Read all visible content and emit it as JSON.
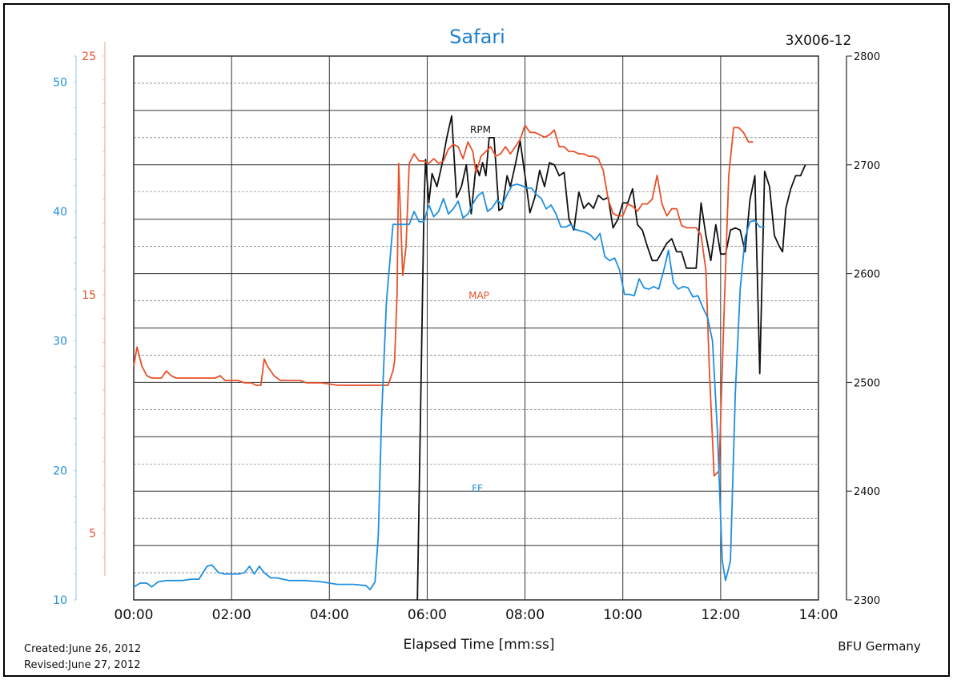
{
  "chart_data": {
    "type": "line",
    "title": "Safari",
    "subtitle": "3X006-12",
    "xlabel": "Elapsed Time [mm:ss]",
    "x_ticks": [
      "00:00",
      "02:00",
      "04:00",
      "06:00",
      "08:00",
      "10:00",
      "12:00",
      "14:00"
    ],
    "x_range_seconds": [
      0,
      840
    ],
    "grid": true,
    "footer": {
      "created": "Created:June 26, 2012",
      "revised": "Revised:June 27, 2012",
      "org": "BFU Germany"
    },
    "axes": {
      "rpm": {
        "side": "right",
        "range": [
          2300,
          2800
        ],
        "ticks": [
          "2300",
          "2400",
          "2500",
          "2600",
          "2700",
          "2800"
        ],
        "color": "#000000"
      },
      "map": {
        "side": "left",
        "range": [
          2.2,
          25
        ],
        "ticks": [
          "5",
          "15",
          "25"
        ],
        "tick_values": [
          5,
          15,
          25
        ],
        "color": "#e8502a"
      },
      "ff": {
        "side": "left",
        "range": [
          10,
          52
        ],
        "ticks": [
          "10",
          "20",
          "30",
          "40",
          "50"
        ],
        "tick_values": [
          10,
          20,
          30,
          40,
          50
        ],
        "color": "#1e8fe0"
      }
    },
    "series": [
      {
        "name": "RPM",
        "axis": "rpm",
        "color": "#111111",
        "points": [
          [
            348,
            2300
          ],
          [
            356,
            2660
          ],
          [
            358,
            2705
          ],
          [
            362,
            2665
          ],
          [
            366,
            2692
          ],
          [
            372,
            2680
          ],
          [
            378,
            2700
          ],
          [
            384,
            2725
          ],
          [
            390,
            2745
          ],
          [
            396,
            2670
          ],
          [
            402,
            2680
          ],
          [
            408,
            2700
          ],
          [
            414,
            2655
          ],
          [
            420,
            2700
          ],
          [
            424,
            2690
          ],
          [
            428,
            2702
          ],
          [
            432,
            2690
          ],
          [
            436,
            2725
          ],
          [
            442,
            2725
          ],
          [
            448,
            2658
          ],
          [
            452,
            2660
          ],
          [
            458,
            2690
          ],
          [
            462,
            2680
          ],
          [
            468,
            2700
          ],
          [
            474,
            2722
          ],
          [
            480,
            2690
          ],
          [
            486,
            2656
          ],
          [
            492,
            2670
          ],
          [
            498,
            2695
          ],
          [
            504,
            2680
          ],
          [
            510,
            2702
          ],
          [
            516,
            2700
          ],
          [
            522,
            2690
          ],
          [
            528,
            2693
          ],
          [
            534,
            2650
          ],
          [
            540,
            2640
          ],
          [
            546,
            2675
          ],
          [
            552,
            2660
          ],
          [
            558,
            2665
          ],
          [
            564,
            2660
          ],
          [
            570,
            2672
          ],
          [
            576,
            2668
          ],
          [
            582,
            2670
          ],
          [
            588,
            2642
          ],
          [
            594,
            2650
          ],
          [
            600,
            2665
          ],
          [
            606,
            2665
          ],
          [
            612,
            2678
          ],
          [
            618,
            2645
          ],
          [
            624,
            2640
          ],
          [
            630,
            2625
          ],
          [
            636,
            2612
          ],
          [
            642,
            2612
          ],
          [
            648,
            2620
          ],
          [
            654,
            2628
          ],
          [
            660,
            2632
          ],
          [
            666,
            2620
          ],
          [
            672,
            2620
          ],
          [
            678,
            2605
          ],
          [
            684,
            2605
          ],
          [
            690,
            2605
          ],
          [
            696,
            2665
          ],
          [
            702,
            2635
          ],
          [
            708,
            2612
          ],
          [
            714,
            2645
          ],
          [
            720,
            2618
          ],
          [
            726,
            2618
          ],
          [
            732,
            2640
          ],
          [
            738,
            2642
          ],
          [
            744,
            2640
          ],
          [
            750,
            2620
          ],
          [
            756,
            2668
          ],
          [
            762,
            2690
          ],
          [
            768,
            2508
          ],
          [
            774,
            2694
          ],
          [
            780,
            2680
          ],
          [
            786,
            2635
          ],
          [
            792,
            2625
          ],
          [
            796,
            2620
          ],
          [
            800,
            2660
          ],
          [
            806,
            2678
          ],
          [
            812,
            2690
          ],
          [
            818,
            2690
          ],
          [
            824,
            2700
          ]
        ]
      },
      {
        "name": "MAP",
        "axis": "map",
        "color": "#e8502a",
        "points": [
          [
            0,
            12.0
          ],
          [
            4,
            12.8
          ],
          [
            10,
            12.0
          ],
          [
            16,
            11.6
          ],
          [
            22,
            11.5
          ],
          [
            28,
            11.5
          ],
          [
            34,
            11.5
          ],
          [
            40,
            11.8
          ],
          [
            46,
            11.6
          ],
          [
            52,
            11.5
          ],
          [
            60,
            11.5
          ],
          [
            70,
            11.5
          ],
          [
            80,
            11.5
          ],
          [
            90,
            11.5
          ],
          [
            100,
            11.5
          ],
          [
            106,
            11.6
          ],
          [
            112,
            11.4
          ],
          [
            120,
            11.4
          ],
          [
            128,
            11.4
          ],
          [
            136,
            11.3
          ],
          [
            144,
            11.3
          ],
          [
            150,
            11.2
          ],
          [
            156,
            11.2
          ],
          [
            160,
            12.3
          ],
          [
            164,
            12.0
          ],
          [
            172,
            11.6
          ],
          [
            180,
            11.4
          ],
          [
            188,
            11.4
          ],
          [
            196,
            11.4
          ],
          [
            204,
            11.4
          ],
          [
            212,
            11.3
          ],
          [
            230,
            11.3
          ],
          [
            250,
            11.2
          ],
          [
            280,
            11.2
          ],
          [
            300,
            11.2
          ],
          [
            312,
            11.2
          ],
          [
            318,
            11.8
          ],
          [
            320,
            12.2
          ],
          [
            323,
            15.0
          ],
          [
            325,
            20.5
          ],
          [
            330,
            15.8
          ],
          [
            334,
            17.0
          ],
          [
            338,
            20.5
          ],
          [
            344,
            20.9
          ],
          [
            350,
            20.6
          ],
          [
            356,
            20.6
          ],
          [
            362,
            20.5
          ],
          [
            368,
            20.7
          ],
          [
            374,
            20.5
          ],
          [
            380,
            20.6
          ],
          [
            386,
            21.1
          ],
          [
            392,
            21.3
          ],
          [
            398,
            21.2
          ],
          [
            404,
            20.7
          ],
          [
            410,
            21.4
          ],
          [
            416,
            21.0
          ],
          [
            420,
            20.1
          ],
          [
            426,
            20.8
          ],
          [
            432,
            21.0
          ],
          [
            438,
            21.2
          ],
          [
            444,
            20.8
          ],
          [
            450,
            20.9
          ],
          [
            456,
            21.2
          ],
          [
            462,
            20.9
          ],
          [
            468,
            21.2
          ],
          [
            474,
            21.5
          ],
          [
            480,
            22.1
          ],
          [
            486,
            21.8
          ],
          [
            492,
            21.8
          ],
          [
            498,
            21.7
          ],
          [
            504,
            21.6
          ],
          [
            510,
            21.7
          ],
          [
            516,
            21.9
          ],
          [
            522,
            21.2
          ],
          [
            528,
            21.2
          ],
          [
            534,
            21.0
          ],
          [
            540,
            21.0
          ],
          [
            546,
            20.9
          ],
          [
            552,
            20.9
          ],
          [
            558,
            20.8
          ],
          [
            564,
            20.8
          ],
          [
            570,
            20.7
          ],
          [
            576,
            20.2
          ],
          [
            582,
            19.0
          ],
          [
            588,
            18.4
          ],
          [
            594,
            18.3
          ],
          [
            600,
            18.3
          ],
          [
            606,
            18.8
          ],
          [
            612,
            18.7
          ],
          [
            618,
            18.5
          ],
          [
            624,
            18.8
          ],
          [
            630,
            18.8
          ],
          [
            636,
            19.0
          ],
          [
            642,
            20.0
          ],
          [
            648,
            18.8
          ],
          [
            654,
            18.3
          ],
          [
            660,
            18.6
          ],
          [
            666,
            18.6
          ],
          [
            672,
            17.9
          ],
          [
            678,
            17.8
          ],
          [
            684,
            17.8
          ],
          [
            690,
            17.8
          ],
          [
            696,
            17.5
          ],
          [
            702,
            16.0
          ],
          [
            706,
            12.0
          ],
          [
            712,
            7.4
          ],
          [
            718,
            7.6
          ],
          [
            724,
            14.0
          ],
          [
            730,
            20.0
          ],
          [
            736,
            22.0
          ],
          [
            742,
            22.0
          ],
          [
            748,
            21.8
          ],
          [
            754,
            21.4
          ],
          [
            760,
            21.4
          ]
        ]
      },
      {
        "name": "FF",
        "axis": "ff",
        "color": "#1e8fe0",
        "points": [
          [
            0,
            11.0
          ],
          [
            8,
            11.3
          ],
          [
            16,
            11.3
          ],
          [
            22,
            11.0
          ],
          [
            30,
            11.4
          ],
          [
            40,
            11.5
          ],
          [
            50,
            11.5
          ],
          [
            60,
            11.5
          ],
          [
            70,
            11.6
          ],
          [
            80,
            11.6
          ],
          [
            90,
            12.6
          ],
          [
            96,
            12.7
          ],
          [
            104,
            12.1
          ],
          [
            112,
            12.0
          ],
          [
            120,
            12.0
          ],
          [
            128,
            12.0
          ],
          [
            136,
            12.1
          ],
          [
            142,
            12.6
          ],
          [
            148,
            12.0
          ],
          [
            154,
            12.6
          ],
          [
            160,
            12.1
          ],
          [
            168,
            11.7
          ],
          [
            176,
            11.7
          ],
          [
            190,
            11.5
          ],
          [
            210,
            11.5
          ],
          [
            230,
            11.4
          ],
          [
            250,
            11.2
          ],
          [
            270,
            11.2
          ],
          [
            285,
            11.1
          ],
          [
            290,
            10.8
          ],
          [
            296,
            11.4
          ],
          [
            300,
            15.0
          ],
          [
            304,
            24.0
          ],
          [
            310,
            33.0
          ],
          [
            318,
            39.0
          ],
          [
            330,
            39.0
          ],
          [
            338,
            39.0
          ],
          [
            344,
            40.0
          ],
          [
            350,
            39.2
          ],
          [
            356,
            39.2
          ],
          [
            362,
            40.5
          ],
          [
            368,
            39.6
          ],
          [
            374,
            40.0
          ],
          [
            380,
            41.0
          ],
          [
            386,
            39.8
          ],
          [
            392,
            40.2
          ],
          [
            398,
            40.8
          ],
          [
            404,
            39.5
          ],
          [
            410,
            39.8
          ],
          [
            416,
            40.6
          ],
          [
            422,
            41.2
          ],
          [
            428,
            41.5
          ],
          [
            434,
            40.0
          ],
          [
            440,
            40.3
          ],
          [
            446,
            40.9
          ],
          [
            452,
            40.5
          ],
          [
            458,
            41.3
          ],
          [
            464,
            42.0
          ],
          [
            470,
            42.1
          ],
          [
            476,
            42.0
          ],
          [
            482,
            41.8
          ],
          [
            488,
            41.8
          ],
          [
            494,
            41.3
          ],
          [
            500,
            41.0
          ],
          [
            506,
            40.2
          ],
          [
            512,
            40.5
          ],
          [
            518,
            39.8
          ],
          [
            524,
            38.8
          ],
          [
            530,
            38.8
          ],
          [
            536,
            39.0
          ],
          [
            542,
            38.6
          ],
          [
            548,
            38.5
          ],
          [
            554,
            38.4
          ],
          [
            560,
            38.2
          ],
          [
            566,
            37.8
          ],
          [
            572,
            38.3
          ],
          [
            578,
            36.5
          ],
          [
            584,
            36.2
          ],
          [
            590,
            36.4
          ],
          [
            596,
            35.5
          ],
          [
            602,
            33.6
          ],
          [
            608,
            33.6
          ],
          [
            614,
            33.5
          ],
          [
            620,
            34.8
          ],
          [
            626,
            34.1
          ],
          [
            632,
            34.0
          ],
          [
            638,
            34.2
          ],
          [
            644,
            34.0
          ],
          [
            650,
            35.4
          ],
          [
            656,
            37.0
          ],
          [
            662,
            34.5
          ],
          [
            668,
            34.0
          ],
          [
            674,
            34.2
          ],
          [
            680,
            34.1
          ],
          [
            686,
            33.4
          ],
          [
            692,
            33.5
          ],
          [
            698,
            32.6
          ],
          [
            704,
            31.8
          ],
          [
            710,
            30.0
          ],
          [
            716,
            23.0
          ],
          [
            722,
            13.0
          ],
          [
            726,
            11.5
          ],
          [
            732,
            13.0
          ],
          [
            738,
            26.0
          ],
          [
            744,
            34.0
          ],
          [
            750,
            38.0
          ],
          [
            756,
            39.2
          ],
          [
            762,
            39.3
          ],
          [
            768,
            38.8
          ],
          [
            774,
            38.8
          ]
        ]
      }
    ]
  }
}
